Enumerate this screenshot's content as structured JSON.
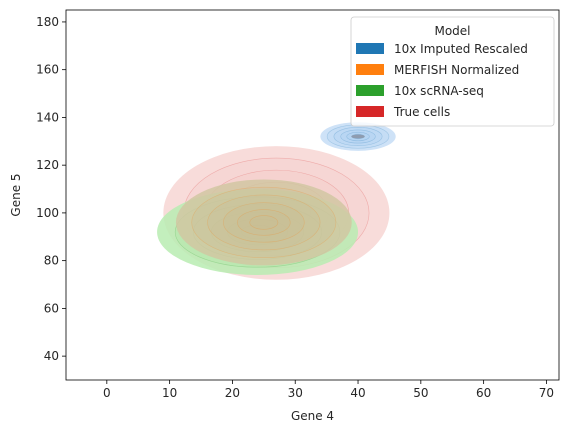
{
  "chart_data": {
    "type": "kde-density",
    "xlabel": "Gene 4",
    "ylabel": "Gene 5",
    "xlim": [
      -6.5,
      72
    ],
    "ylim": [
      30,
      185
    ],
    "x_ticks": [
      0,
      10,
      20,
      30,
      40,
      50,
      60,
      70
    ],
    "y_ticks": [
      40,
      60,
      80,
      100,
      120,
      140,
      160,
      180
    ],
    "grid": false,
    "legend": {
      "title": "Model",
      "placement": "top-right",
      "entries": [
        {
          "label": "10x Imputed Rescaled",
          "color": "#1f77b4"
        },
        {
          "label": "MERFISH Normalized",
          "color": "#ff7f0e"
        },
        {
          "label": "10x scRNA-seq",
          "color": "#2ca02c"
        },
        {
          "label": "True cells",
          "color": "#d62728"
        }
      ]
    },
    "series": [
      {
        "name": "10x Imputed Rescaled",
        "center": [
          40,
          132
        ],
        "spread": [
          6,
          6
        ]
      },
      {
        "name": "MERFISH Normalized",
        "center": [
          25,
          96
        ],
        "spread": [
          14,
          18
        ]
      },
      {
        "name": "10x scRNA-seq",
        "center": [
          24,
          92
        ],
        "spread": [
          16,
          18
        ]
      },
      {
        "name": "True cells",
        "center": [
          27,
          100
        ],
        "spread": [
          18,
          28
        ]
      }
    ]
  }
}
